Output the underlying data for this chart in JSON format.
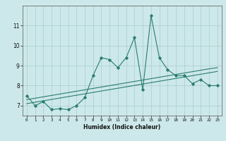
{
  "xlabel": "Humidex (Indice chaleur)",
  "ylabel": "",
  "x": [
    0,
    1,
    2,
    3,
    4,
    5,
    6,
    7,
    8,
    9,
    10,
    11,
    12,
    13,
    14,
    15,
    16,
    17,
    18,
    19,
    20,
    21,
    22,
    23
  ],
  "y_main": [
    7.5,
    7.0,
    7.2,
    6.8,
    6.85,
    6.8,
    7.0,
    7.4,
    8.5,
    9.4,
    9.3,
    8.9,
    9.4,
    10.4,
    7.8,
    11.5,
    9.4,
    8.8,
    8.5,
    8.5,
    8.1,
    8.3,
    8.0,
    8.0
  ],
  "y_trend1": [
    7.3,
    7.37,
    7.44,
    7.51,
    7.58,
    7.65,
    7.72,
    7.79,
    7.86,
    7.93,
    8.0,
    8.07,
    8.14,
    8.21,
    8.28,
    8.35,
    8.42,
    8.49,
    8.56,
    8.63,
    8.7,
    8.77,
    8.84,
    8.9
  ],
  "y_trend2": [
    7.1,
    7.17,
    7.24,
    7.31,
    7.38,
    7.45,
    7.52,
    7.59,
    7.66,
    7.73,
    7.8,
    7.87,
    7.94,
    8.01,
    8.08,
    8.15,
    8.22,
    8.29,
    8.36,
    8.43,
    8.5,
    8.57,
    8.64,
    8.71
  ],
  "ylim": [
    6.5,
    12.0
  ],
  "yticks": [
    7,
    8,
    9,
    10,
    11
  ],
  "xticks": [
    0,
    1,
    2,
    3,
    4,
    5,
    6,
    7,
    8,
    9,
    10,
    11,
    12,
    13,
    14,
    15,
    16,
    17,
    18,
    19,
    20,
    21,
    22,
    23
  ],
  "line_color": "#2a7d6e",
  "bg_color": "#cde8ea",
  "grid_color": "#a8cccc"
}
